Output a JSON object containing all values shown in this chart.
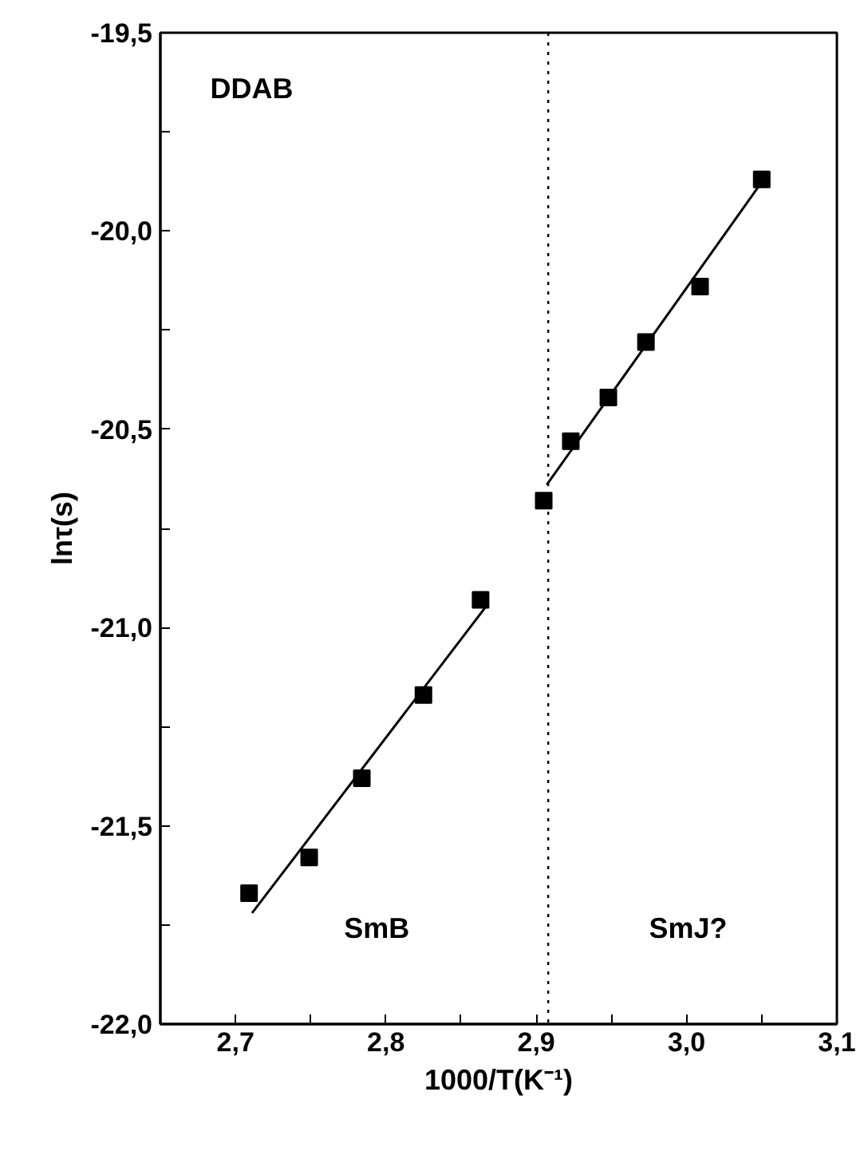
{
  "chart_data": {
    "type": "scatter",
    "xlabel": "1000/T(K⁻¹)",
    "ylabel": "lnτ(s)",
    "annotations": [
      "DDAB",
      "SmB",
      "SmJ?"
    ],
    "grid": false,
    "xlim": [
      2.65,
      3.1
    ],
    "ylim": [
      -22.0,
      -19.5
    ],
    "xticks": [
      {
        "value": 2.7,
        "label": "2,7"
      },
      {
        "value": 2.75,
        "label": null
      },
      {
        "value": 2.8,
        "label": "2,8"
      },
      {
        "value": 2.85,
        "label": null
      },
      {
        "value": 2.9,
        "label": "2,9"
      },
      {
        "value": 2.95,
        "label": null
      },
      {
        "value": 3.0,
        "label": "3,0"
      },
      {
        "value": 3.05,
        "label": null
      },
      {
        "value": 3.1,
        "label": "3,1"
      }
    ],
    "yticks": [
      {
        "value": -22.0,
        "label": "-22,0"
      },
      {
        "value": -21.75,
        "label": null
      },
      {
        "value": -21.5,
        "label": "-21,5"
      },
      {
        "value": -21.25,
        "label": null
      },
      {
        "value": -21.0,
        "label": "-21,0"
      },
      {
        "value": -20.75,
        "label": null
      },
      {
        "value": -20.5,
        "label": "-20,5"
      },
      {
        "value": -20.25,
        "label": null
      },
      {
        "value": -20.0,
        "label": "-20,0"
      },
      {
        "value": -19.75,
        "label": null
      },
      {
        "value": -19.5,
        "label": "-19,5"
      }
    ],
    "series": [
      {
        "marker": "square",
        "color": "#000000",
        "x": [
          2.709,
          2.749,
          2.784,
          2.825,
          2.863,
          2.905,
          2.923,
          2.948,
          2.973,
          3.009,
          3.05
        ],
        "values": [
          -21.67,
          -21.58,
          -21.38,
          -21.17,
          -20.93,
          -20.68,
          -20.53,
          -20.42,
          -20.28,
          -20.14,
          -19.87
        ]
      },
      {
        "type": "line",
        "color": "#000000",
        "x": [
          2.711,
          2.866
        ],
        "values": [
          -21.72,
          -20.95
        ]
      },
      {
        "type": "line",
        "color": "#000000",
        "x": [
          2.907,
          3.055
        ],
        "values": [
          -20.64,
          -19.85
        ]
      }
    ],
    "ref_lines": [
      {
        "axis": "x",
        "value": 2.908,
        "line_style": "dotted",
        "color": "#000000"
      }
    ]
  }
}
